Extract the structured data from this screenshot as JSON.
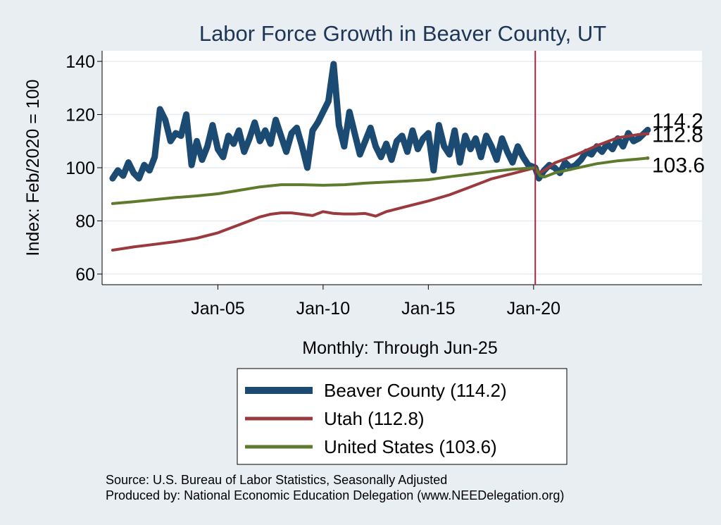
{
  "chart_data": {
    "type": "line",
    "title": "Labor Force Growth in Beaver  County, UT",
    "xlabel": "Monthly: Through Jun-25",
    "ylabel": "Index: Feb/2020 = 100",
    "ylim": [
      56,
      144
    ],
    "yticks": [
      60,
      80,
      100,
      120,
      140
    ],
    "xticks": [
      {
        "label": "Jan-05",
        "value": 2005.0
      },
      {
        "label": "Jan-10",
        "value": 2010.0
      },
      {
        "label": "Jan-15",
        "value": 2015.0
      },
      {
        "label": "Jan-20",
        "value": 2020.0
      }
    ],
    "xlim": [
      1999.5,
      2028.0
    ],
    "vline": {
      "value": 2020.08,
      "color": "#b0223a"
    },
    "grid": true,
    "legend_position": "bottom",
    "series": [
      {
        "name": "Beaver  County (114.2)",
        "end_label": "114.2",
        "color": "#1b4a72",
        "x": [
          2000.0,
          2000.25,
          2000.5,
          2000.75,
          2001.0,
          2001.25,
          2001.5,
          2001.75,
          2002.0,
          2002.25,
          2002.5,
          2002.75,
          2003.0,
          2003.25,
          2003.5,
          2003.75,
          2004.0,
          2004.25,
          2004.5,
          2004.75,
          2005.0,
          2005.25,
          2005.5,
          2005.75,
          2006.0,
          2006.25,
          2006.5,
          2006.75,
          2007.0,
          2007.25,
          2007.5,
          2007.75,
          2008.0,
          2008.25,
          2008.5,
          2008.75,
          2009.0,
          2009.25,
          2009.5,
          2009.75,
          2010.0,
          2010.25,
          2010.5,
          2010.75,
          2011.0,
          2011.25,
          2011.5,
          2011.75,
          2012.0,
          2012.25,
          2012.5,
          2012.75,
          2013.0,
          2013.25,
          2013.5,
          2013.75,
          2014.0,
          2014.25,
          2014.5,
          2014.75,
          2015.0,
          2015.25,
          2015.5,
          2015.75,
          2016.0,
          2016.25,
          2016.5,
          2016.75,
          2017.0,
          2017.25,
          2017.5,
          2017.75,
          2018.0,
          2018.25,
          2018.5,
          2018.75,
          2019.0,
          2019.25,
          2019.5,
          2019.75,
          2020.08,
          2020.25,
          2020.5,
          2020.75,
          2021.0,
          2021.25,
          2021.5,
          2021.75,
          2022.0,
          2022.25,
          2022.5,
          2022.75,
          2023.0,
          2023.25,
          2023.5,
          2023.75,
          2024.0,
          2024.25,
          2024.5,
          2024.75,
          2025.0,
          2025.42
        ],
        "values": [
          96,
          99,
          97,
          102,
          98,
          96,
          101,
          99,
          104,
          122,
          118,
          110,
          113,
          112,
          120,
          101,
          110,
          103,
          108,
          116,
          107,
          104,
          112,
          109,
          114,
          106,
          111,
          117,
          110,
          114,
          109,
          118,
          112,
          106,
          113,
          115,
          108,
          100,
          114,
          117,
          121,
          125,
          139,
          116,
          108,
          121,
          113,
          105,
          110,
          115,
          108,
          104,
          109,
          103,
          110,
          112,
          106,
          114,
          107,
          111,
          113,
          99,
          116,
          108,
          105,
          114,
          102,
          112,
          107,
          111,
          104,
          112,
          108,
          103,
          111,
          106,
          102,
          108,
          104,
          101,
          100,
          96,
          99,
          101,
          100,
          98,
          102,
          100,
          101,
          103,
          106,
          105,
          108,
          106,
          109,
          107,
          111,
          108,
          113,
          110,
          111,
          114.2
        ]
      },
      {
        "name": "Utah (112.8)",
        "end_label": "112.8",
        "color": "#9b3a3e",
        "x": [
          2000.0,
          2001.0,
          2002.0,
          2003.0,
          2004.0,
          2005.0,
          2006.0,
          2007.0,
          2007.5,
          2008.0,
          2008.5,
          2009.0,
          2009.5,
          2010.0,
          2010.5,
          2011.0,
          2011.5,
          2012.0,
          2012.5,
          2013.0,
          2014.0,
          2015.0,
          2016.0,
          2017.0,
          2018.0,
          2019.0,
          2020.08,
          2020.3,
          2020.6,
          2021.0,
          2022.0,
          2023.0,
          2024.0,
          2025.0,
          2025.42
        ],
        "values": [
          69,
          70.2,
          71.2,
          72.2,
          73.5,
          75.5,
          78.5,
          81.5,
          82.5,
          83,
          83,
          82.5,
          82,
          83.5,
          82.8,
          82.6,
          82.6,
          82.8,
          81.8,
          83.5,
          85.5,
          87.5,
          89.8,
          92.8,
          95.8,
          97.8,
          100,
          98,
          99.5,
          101.8,
          104.8,
          108.3,
          111.3,
          112.5,
          112.8
        ]
      },
      {
        "name": "United States (103.6)",
        "end_label": "103.6",
        "color": "#5e7a2d",
        "x": [
          2000.0,
          2001.0,
          2002.0,
          2003.0,
          2004.0,
          2005.0,
          2006.0,
          2007.0,
          2008.0,
          2009.0,
          2010.0,
          2011.0,
          2012.0,
          2013.0,
          2014.0,
          2015.0,
          2016.0,
          2017.0,
          2018.0,
          2019.0,
          2020.08,
          2020.3,
          2020.5,
          2021.0,
          2022.0,
          2023.0,
          2024.0,
          2025.0,
          2025.42
        ],
        "values": [
          86.5,
          87.2,
          88,
          88.8,
          89.4,
          90.2,
          91.5,
          92.8,
          93.6,
          93.6,
          93.4,
          93.6,
          94.2,
          94.6,
          95,
          95.5,
          96.6,
          97.6,
          98.6,
          99.4,
          100,
          97,
          96.5,
          98,
          99.8,
          101.5,
          102.6,
          103.3,
          103.6
        ]
      }
    ]
  },
  "footer": {
    "source": "Source: U.S. Bureau of Labor Statistics, Seasonally Adjusted",
    "produced_by": "Produced by: National Economic Education Delegation (www.NEEDelegation.org)"
  }
}
